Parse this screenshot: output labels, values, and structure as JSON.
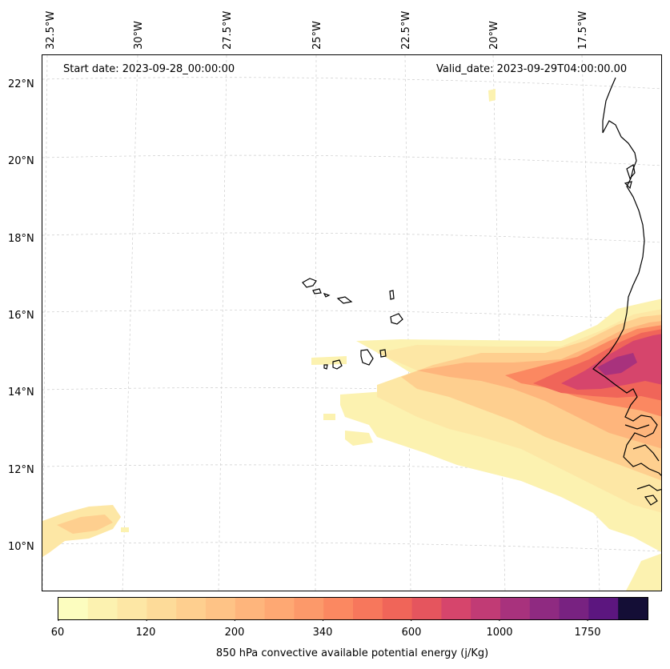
{
  "map": {
    "lon_labels": [
      "32.5°W",
      "30°W",
      "27.5°W",
      "25°W",
      "22.5°W",
      "20°W",
      "17.5°W"
    ],
    "lat_labels": [
      "22°N",
      "20°N",
      "18°N",
      "16°N",
      "14°N",
      "12°N",
      "10°N"
    ],
    "start_date": "Start date: 2023-09-28_00:00:00",
    "valid_date": "Valid_date: 2023-09-29T04:00:00.00",
    "coastline_color": "#000000",
    "grid_color": "#cccccc"
  },
  "colorbar": {
    "title": "850 hPa convective available potential energy (j/Kg)",
    "tick_labels": [
      "60",
      "120",
      "200",
      "340",
      "600",
      "1000",
      "1750"
    ],
    "colors": [
      "#fcfdbf",
      "#fcf2b0",
      "#fde7a5",
      "#fddb99",
      "#fecf8f",
      "#fec386",
      "#feb57c",
      "#fea873",
      "#fc996a",
      "#fb8861",
      "#f7775c",
      "#f06559",
      "#e5555e",
      "#d6456c",
      "#c13b75",
      "#a8327d",
      "#8f2a81",
      "#782281",
      "#5c167f",
      "#140e36"
    ]
  }
}
